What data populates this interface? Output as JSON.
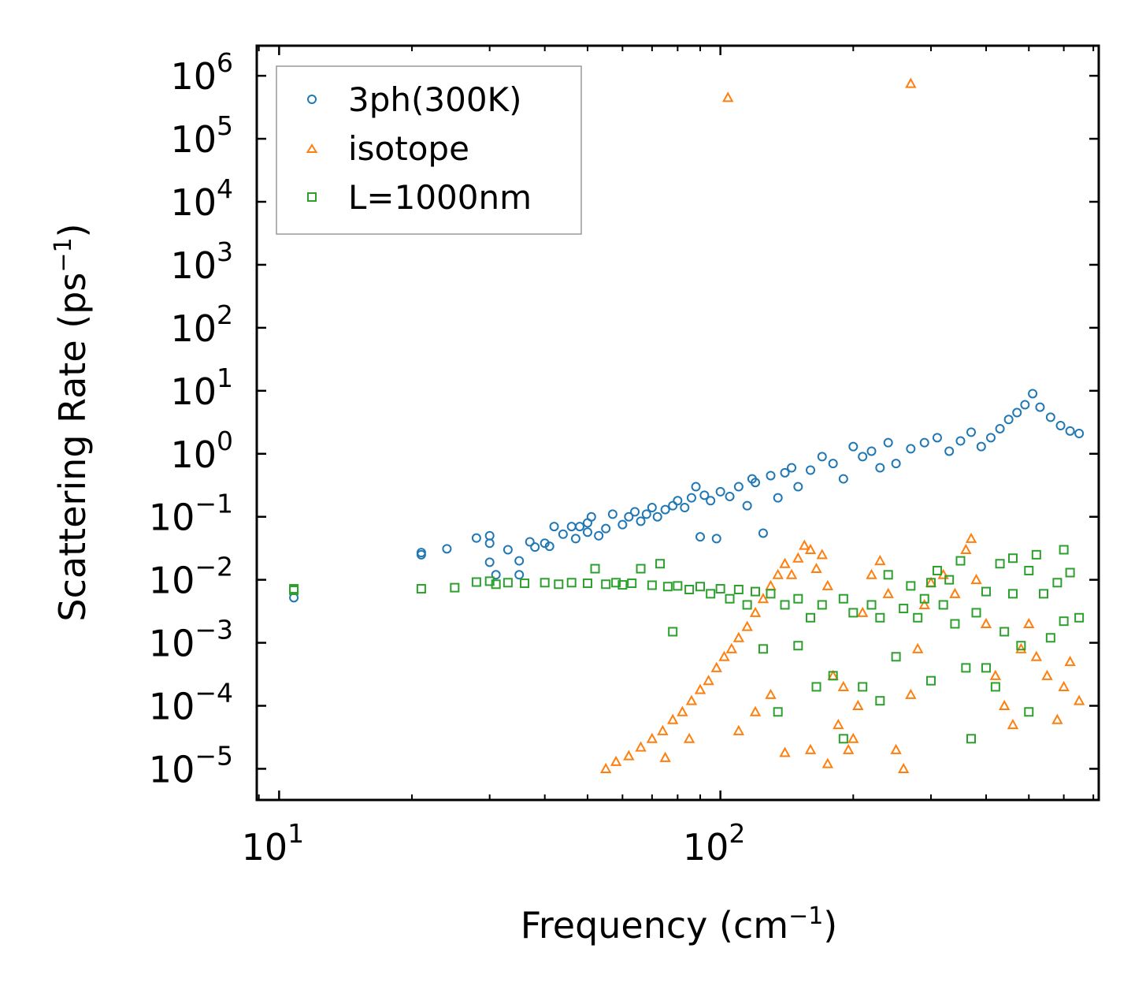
{
  "chart_data": {
    "type": "scatter",
    "xscale": "log",
    "yscale": "log",
    "xlabel": "Frequency (cm",
    "xlabel_sup": "−1",
    "xlabel_end": ")",
    "ylabel": "Scattering Rate (ps",
    "ylabel_sup": "−1",
    "ylabel_end": ")",
    "xlim": [
      8.9,
      720
    ],
    "ylim": [
      3.2e-06,
      3000000.0
    ],
    "legend_position": "top-left",
    "x_ticks": [
      {
        "base": "10",
        "exp": "1",
        "value": 10
      },
      {
        "base": "10",
        "exp": "2",
        "value": 100
      }
    ],
    "y_ticks": [
      {
        "base": "10",
        "exp": "6",
        "value": 1000000.0
      },
      {
        "base": "10",
        "exp": "5",
        "value": 100000.0
      },
      {
        "base": "10",
        "exp": "4",
        "value": 10000.0
      },
      {
        "base": "10",
        "exp": "3",
        "value": 1000.0
      },
      {
        "base": "10",
        "exp": "2",
        "value": 100.0
      },
      {
        "base": "10",
        "exp": "1",
        "value": 10
      },
      {
        "base": "10",
        "exp": "0",
        "value": 1
      },
      {
        "base": "10",
        "exp": "−1",
        "value": 0.1
      },
      {
        "base": "10",
        "exp": "−2",
        "value": 0.01
      },
      {
        "base": "10",
        "exp": "−3",
        "value": 0.001
      },
      {
        "base": "10",
        "exp": "−4",
        "value": 0.0001
      },
      {
        "base": "10",
        "exp": "−5",
        "value": 1e-05
      }
    ],
    "series": [
      {
        "name": "3ph(300K)",
        "marker": "circle",
        "color": "#1f77b4",
        "points": [
          [
            10.8,
            0.0052
          ],
          [
            21,
            0.025
          ],
          [
            21,
            0.027
          ],
          [
            24,
            0.031
          ],
          [
            28,
            0.046
          ],
          [
            30,
            0.05
          ],
          [
            30,
            0.038
          ],
          [
            30,
            0.019
          ],
          [
            31,
            0.012
          ],
          [
            33,
            0.03
          ],
          [
            35,
            0.02
          ],
          [
            35,
            0.012
          ],
          [
            37,
            0.04
          ],
          [
            38,
            0.033
          ],
          [
            40,
            0.038
          ],
          [
            41,
            0.034
          ],
          [
            42,
            0.07
          ],
          [
            44,
            0.053
          ],
          [
            46,
            0.07
          ],
          [
            47,
            0.045
          ],
          [
            48,
            0.07
          ],
          [
            50,
            0.057
          ],
          [
            50,
            0.08
          ],
          [
            51,
            0.1
          ],
          [
            53,
            0.05
          ],
          [
            55,
            0.065
          ],
          [
            57,
            0.11
          ],
          [
            60,
            0.075
          ],
          [
            62,
            0.1
          ],
          [
            64,
            0.12
          ],
          [
            66,
            0.085
          ],
          [
            68,
            0.11
          ],
          [
            70,
            0.14
          ],
          [
            72,
            0.1
          ],
          [
            75,
            0.13
          ],
          [
            78,
            0.15
          ],
          [
            80,
            0.18
          ],
          [
            83,
            0.14
          ],
          [
            86,
            0.2
          ],
          [
            88,
            0.3
          ],
          [
            90,
            0.048
          ],
          [
            92,
            0.22
          ],
          [
            95,
            0.18
          ],
          [
            98,
            0.045
          ],
          [
            100,
            0.25
          ],
          [
            105,
            0.21
          ],
          [
            110,
            0.3
          ],
          [
            115,
            0.15
          ],
          [
            118,
            0.4
          ],
          [
            120,
            0.35
          ],
          [
            125,
            0.055
          ],
          [
            130,
            0.45
          ],
          [
            135,
            0.2
          ],
          [
            140,
            0.5
          ],
          [
            145,
            0.6
          ],
          [
            150,
            0.3
          ],
          [
            160,
            0.55
          ],
          [
            170,
            0.9
          ],
          [
            180,
            0.7
          ],
          [
            190,
            0.4
          ],
          [
            200,
            1.3
          ],
          [
            210,
            0.9
          ],
          [
            220,
            1.1
          ],
          [
            230,
            0.6
          ],
          [
            240,
            1.5
          ],
          [
            250,
            0.7
          ],
          [
            270,
            1.2
          ],
          [
            290,
            1.5
          ],
          [
            310,
            1.8
          ],
          [
            330,
            1.1
          ],
          [
            350,
            1.6
          ],
          [
            370,
            2.2
          ],
          [
            390,
            1.3
          ],
          [
            410,
            1.8
          ],
          [
            430,
            2.5
          ],
          [
            450,
            3.5
          ],
          [
            470,
            4.5
          ],
          [
            490,
            6.0
          ],
          [
            510,
            9.0
          ],
          [
            530,
            5.5
          ],
          [
            560,
            3.8
          ],
          [
            590,
            2.8
          ],
          [
            620,
            2.3
          ],
          [
            650,
            2.1
          ]
        ]
      },
      {
        "name": "isotope",
        "marker": "triangle",
        "color": "#ff7f0e",
        "points": [
          [
            104,
            450000
          ],
          [
            270,
            750000
          ],
          [
            55,
            1e-05
          ],
          [
            58,
            1.3e-05
          ],
          [
            62,
            1.6e-05
          ],
          [
            66,
            2.2e-05
          ],
          [
            70,
            3e-05
          ],
          [
            74,
            4e-05
          ],
          [
            78,
            6e-05
          ],
          [
            82,
            8e-05
          ],
          [
            86,
            0.00012
          ],
          [
            90,
            0.00018
          ],
          [
            94,
            0.00025
          ],
          [
            98,
            0.0004
          ],
          [
            102,
            0.0006
          ],
          [
            106,
            0.0008
          ],
          [
            110,
            0.0012
          ],
          [
            115,
            0.0018
          ],
          [
            120,
            0.003
          ],
          [
            125,
            0.005
          ],
          [
            130,
            0.008
          ],
          [
            135,
            0.012
          ],
          [
            140,
            0.018
          ],
          [
            145,
            0.012
          ],
          [
            150,
            0.022
          ],
          [
            155,
            0.035
          ],
          [
            160,
            0.03
          ],
          [
            165,
            0.015
          ],
          [
            170,
            0.025
          ],
          [
            175,
            0.008
          ],
          [
            180,
            0.0003
          ],
          [
            185,
            5e-05
          ],
          [
            190,
            0.0002
          ],
          [
            195,
            2e-05
          ],
          [
            200,
            3e-05
          ],
          [
            205,
            0.0001
          ],
          [
            210,
            0.003
          ],
          [
            220,
            0.012
          ],
          [
            230,
            0.02
          ],
          [
            240,
            0.006
          ],
          [
            250,
            2e-05
          ],
          [
            260,
            1e-05
          ],
          [
            270,
            0.00015
          ],
          [
            280,
            0.0008
          ],
          [
            290,
            0.004
          ],
          [
            300,
            0.009
          ],
          [
            320,
            0.012
          ],
          [
            340,
            0.006
          ],
          [
            360,
            0.03
          ],
          [
            370,
            0.045
          ],
          [
            380,
            0.01
          ],
          [
            400,
            0.002
          ],
          [
            420,
            0.0003
          ],
          [
            440,
            0.0001
          ],
          [
            460,
            5e-05
          ],
          [
            480,
            0.0008
          ],
          [
            500,
            0.002
          ],
          [
            520,
            0.0006
          ],
          [
            550,
            0.0003
          ],
          [
            580,
            6e-05
          ],
          [
            600,
            0.0002
          ],
          [
            620,
            0.0005
          ],
          [
            650,
            0.00012
          ],
          [
            140,
            1.8e-05
          ],
          [
            160,
            2e-05
          ],
          [
            175,
            1.2e-05
          ],
          [
            110,
            4e-05
          ],
          [
            120,
            8e-05
          ],
          [
            130,
            0.00015
          ],
          [
            75,
            1.5e-05
          ],
          [
            85,
            3e-05
          ]
        ]
      },
      {
        "name": "L=1000nm",
        "marker": "square",
        "color": "#2ca02c",
        "points": [
          [
            10.8,
            0.0068
          ],
          [
            10.8,
            0.0072
          ],
          [
            21,
            0.0072
          ],
          [
            25,
            0.0075
          ],
          [
            28,
            0.0092
          ],
          [
            30,
            0.0095
          ],
          [
            31,
            0.0085
          ],
          [
            33,
            0.009
          ],
          [
            36,
            0.0088
          ],
          [
            40,
            0.009
          ],
          [
            43,
            0.0085
          ],
          [
            46,
            0.009
          ],
          [
            50,
            0.0088
          ],
          [
            52,
            0.015
          ],
          [
            55,
            0.0085
          ],
          [
            58,
            0.009
          ],
          [
            60,
            0.0083
          ],
          [
            63,
            0.0088
          ],
          [
            66,
            0.015
          ],
          [
            70,
            0.0082
          ],
          [
            73,
            0.018
          ],
          [
            76,
            0.0078
          ],
          [
            78,
            0.0015
          ],
          [
            80,
            0.008
          ],
          [
            85,
            0.007
          ],
          [
            90,
            0.0078
          ],
          [
            95,
            0.006
          ],
          [
            100,
            0.0072
          ],
          [
            105,
            0.005
          ],
          [
            110,
            0.007
          ],
          [
            115,
            0.004
          ],
          [
            120,
            0.0065
          ],
          [
            125,
            0.0008
          ],
          [
            130,
            0.006
          ],
          [
            135,
            8e-05
          ],
          [
            140,
            0.004
          ],
          [
            150,
            0.005
          ],
          [
            160,
            0.0025
          ],
          [
            170,
            0.004
          ],
          [
            180,
            0.0003
          ],
          [
            190,
            0.005
          ],
          [
            200,
            0.003
          ],
          [
            210,
            0.0002
          ],
          [
            220,
            0.004
          ],
          [
            230,
            0.0025
          ],
          [
            240,
            0.012
          ],
          [
            250,
            0.0006
          ],
          [
            260,
            0.0035
          ],
          [
            270,
            0.008
          ],
          [
            280,
            0.0025
          ],
          [
            290,
            0.005
          ],
          [
            300,
            0.009
          ],
          [
            310,
            0.014
          ],
          [
            320,
            0.004
          ],
          [
            340,
            0.002
          ],
          [
            360,
            0.0004
          ],
          [
            370,
            3e-05
          ],
          [
            380,
            0.003
          ],
          [
            400,
            0.0065
          ],
          [
            420,
            0.0002
          ],
          [
            440,
            0.0015
          ],
          [
            460,
            0.006
          ],
          [
            480,
            0.0009
          ],
          [
            500,
            0.014
          ],
          [
            520,
            0.025
          ],
          [
            540,
            0.006
          ],
          [
            560,
            0.0012
          ],
          [
            580,
            0.009
          ],
          [
            600,
            0.0022
          ],
          [
            620,
            0.013
          ],
          [
            650,
            0.0025
          ],
          [
            190,
            3e-05
          ],
          [
            230,
            0.00012
          ],
          [
            300,
            0.00025
          ],
          [
            400,
            0.0004
          ],
          [
            500,
            8e-05
          ],
          [
            330,
            0.01
          ],
          [
            350,
            0.02
          ],
          [
            430,
            0.018
          ],
          [
            460,
            0.022
          ],
          [
            600,
            0.03
          ],
          [
            150,
            0.0009
          ],
          [
            165,
            0.0002
          ]
        ]
      }
    ]
  }
}
